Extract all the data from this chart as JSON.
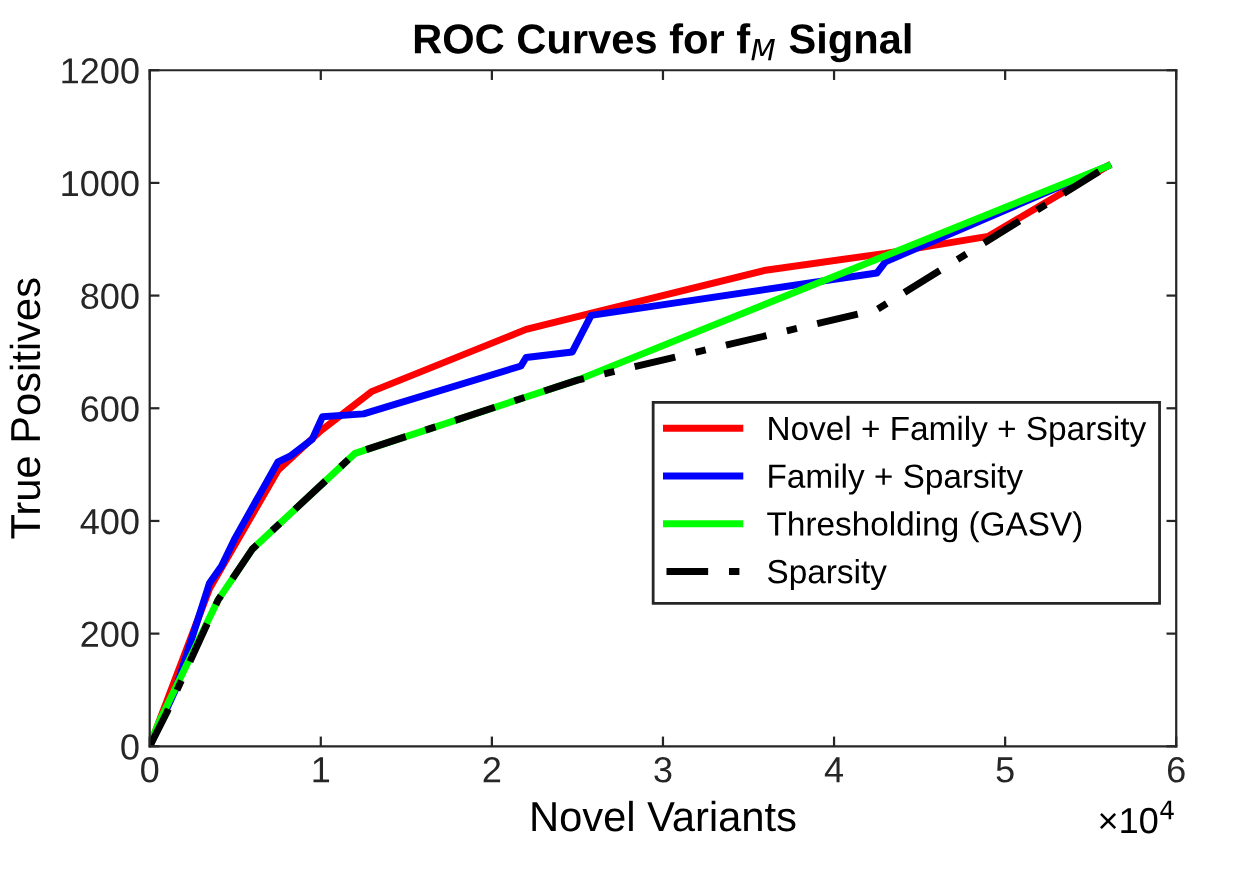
{
  "chart_data": {
    "type": "line",
    "title": "ROC Curves for f$_{M}$ Signal",
    "xlabel": "Novel Variants",
    "ylabel": "True Positives",
    "xlim": [
      0,
      6
    ],
    "ylim": [
      0,
      1200
    ],
    "xticks": [
      0,
      1,
      2,
      3,
      4,
      5,
      6
    ],
    "yticks": [
      0,
      200,
      400,
      600,
      800,
      1000,
      1200
    ],
    "annotations": [
      "×10$^{4}$"
    ],
    "grid": false,
    "legend": "right",
    "marker": "none",
    "series": [
      {
        "name": "Novel + Family + Sparsity",
        "color": "#ff0000",
        "line_style": "solid",
        "x": [
          0,
          0.1,
          0.35,
          0.75,
          1.0,
          1.3,
          2.2,
          2.6,
          3.6,
          4.3,
          4.9,
          5.6
        ],
        "values": [
          0,
          80,
          280,
          490,
          560,
          630,
          740,
          770,
          845,
          875,
          905,
          1030
        ]
      },
      {
        "name": "Family + Sparsity",
        "color": "#0000ff",
        "line_style": "solid",
        "x": [
          0,
          0.15,
          0.35,
          0.42,
          0.5,
          0.75,
          0.82,
          0.95,
          1.01,
          1.25,
          2.17,
          2.2,
          2.47,
          2.58,
          4.25,
          4.3,
          5.6
        ],
        "values": [
          0,
          100,
          290,
          320,
          370,
          505,
          515,
          545,
          585,
          590,
          675,
          690,
          700,
          765,
          840,
          860,
          1030
        ]
      },
      {
        "name": "Thresholding (GASV)",
        "color": "#00ff00",
        "line_style": "solid",
        "x": [
          0,
          0.05,
          0.4,
          0.6,
          1.2,
          2.2,
          2.5,
          5.6
        ],
        "values": [
          0,
          40,
          260,
          350,
          520,
          620,
          650,
          1030
        ]
      },
      {
        "name": "Sparsity",
        "color": "#000000",
        "line_style": "dashed",
        "x": [
          0,
          0.1,
          0.4,
          0.6,
          1.2,
          2.5,
          4.25,
          5.6
        ],
        "values": [
          0,
          60,
          260,
          350,
          520,
          650,
          775,
          1030
        ]
      }
    ]
  }
}
